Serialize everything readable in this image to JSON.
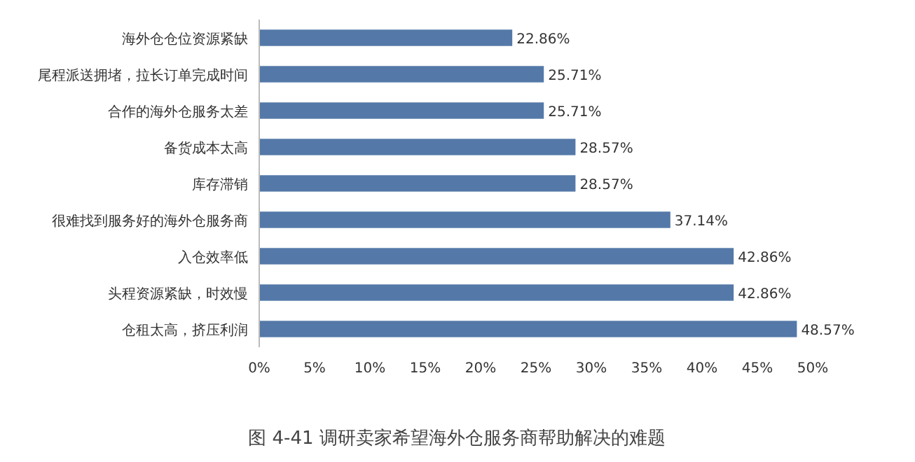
{
  "chart_data": {
    "type": "bar",
    "orientation": "horizontal",
    "title": "图 4-41  调研卖家希望海外仓服务商帮助解决的难题",
    "categories": [
      "海外仓仓位资源紧缺",
      "尾程派送拥堵，拉长订单完成时间",
      "合作的海外仓服务太差",
      "备货成本太高",
      "库存滞销",
      "很难找到服务好的海外仓服务商",
      "入仓效率低",
      "头程资源紧缺，时效慢",
      "仓租太高，挤压利润"
    ],
    "series": [
      {
        "color": "#5479a8",
        "values": [
          22.86,
          25.71,
          25.71,
          28.57,
          28.57,
          37.14,
          42.86,
          42.86,
          48.57
        ],
        "value_labels": [
          "22.86%",
          "25.71%",
          "25.71%",
          "28.57%",
          "28.57%",
          "37.14%",
          "42.86%",
          "42.86%",
          "48.57%"
        ]
      }
    ],
    "xlim": [
      0,
      50
    ],
    "xticks": [
      {
        "value": 0,
        "label": "0%"
      },
      {
        "value": 5,
        "label": "5%"
      },
      {
        "value": 10,
        "label": "10%"
      },
      {
        "value": 15,
        "label": "15%"
      },
      {
        "value": 20,
        "label": "20%"
      },
      {
        "value": 25,
        "label": "25%"
      },
      {
        "value": 30,
        "label": "30%"
      },
      {
        "value": 35,
        "label": "35%"
      },
      {
        "value": 40,
        "label": "40%"
      },
      {
        "value": 45,
        "label": "45%"
      },
      {
        "value": 50,
        "label": "50%"
      }
    ]
  }
}
